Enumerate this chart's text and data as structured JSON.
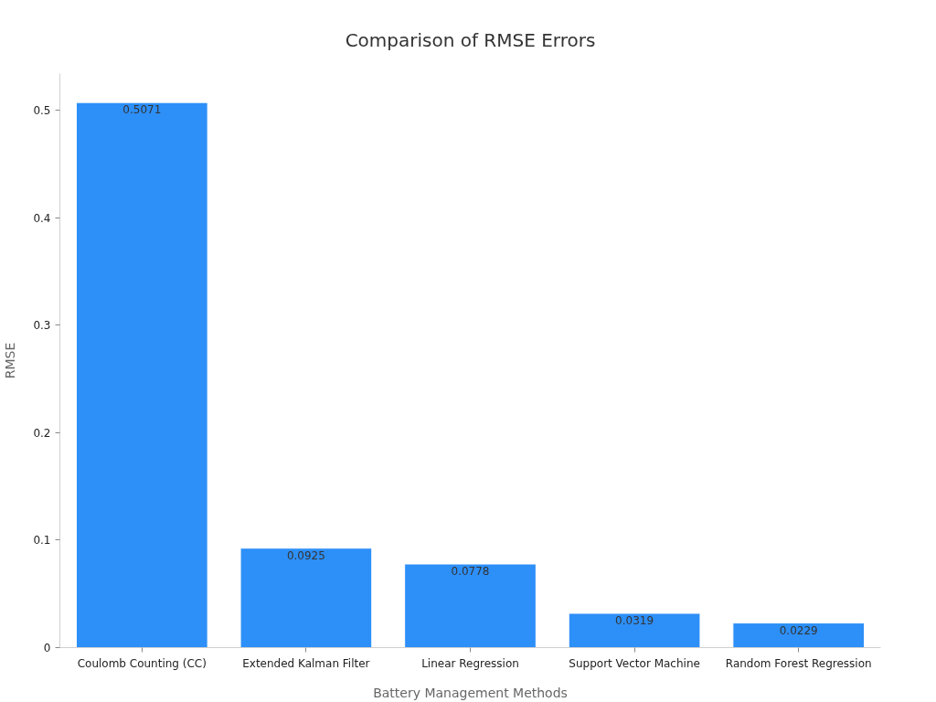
{
  "chart_data": {
    "type": "bar",
    "title": "Comparison of RMSE Errors",
    "xlabel": "Battery Management Methods",
    "ylabel": "RMSE",
    "categories": [
      "Coulomb Counting (CC)",
      "Extended Kalman Filter",
      "Linear Regression",
      "Support Vector Machine",
      "Random Forest Regression"
    ],
    "values": [
      0.5071,
      0.0925,
      0.0778,
      0.0319,
      0.0229
    ],
    "color": "#2d8ff8",
    "ylim": [
      0,
      0.534
    ],
    "yticks": [
      0,
      0.1,
      0.2,
      0.3,
      0.4,
      0.5
    ],
    "data_labels": true,
    "grid": false
  }
}
